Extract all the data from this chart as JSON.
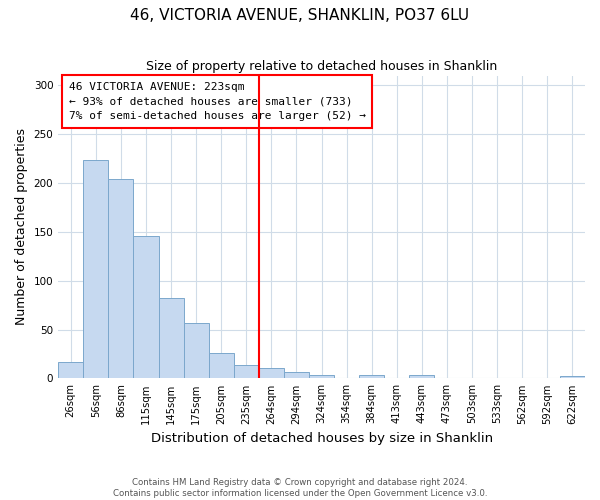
{
  "title": "46, VICTORIA AVENUE, SHANKLIN, PO37 6LU",
  "subtitle": "Size of property relative to detached houses in Shanklin",
  "xlabel": "Distribution of detached houses by size in Shanklin",
  "ylabel": "Number of detached properties",
  "bar_labels": [
    "26sqm",
    "56sqm",
    "86sqm",
    "115sqm",
    "145sqm",
    "175sqm",
    "205sqm",
    "235sqm",
    "264sqm",
    "294sqm",
    "324sqm",
    "354sqm",
    "384sqm",
    "413sqm",
    "443sqm",
    "473sqm",
    "503sqm",
    "533sqm",
    "562sqm",
    "592sqm",
    "622sqm"
  ],
  "bar_values": [
    17,
    224,
    204,
    146,
    82,
    57,
    26,
    14,
    11,
    7,
    4,
    0,
    4,
    0,
    4,
    0,
    0,
    0,
    0,
    0,
    2
  ],
  "bar_color": "#c6d9f0",
  "bar_edge_color": "#7ba7cc",
  "vline_x": 7.5,
  "vline_color": "red",
  "annotation_line1": "46 VICTORIA AVENUE: 223sqm",
  "annotation_line2": "← 93% of detached houses are smaller (733)",
  "annotation_line3": "7% of semi-detached houses are larger (52) →",
  "box_facecolor": "white",
  "box_edgecolor": "red",
  "ylim": [
    0,
    310
  ],
  "yticks": [
    0,
    50,
    100,
    150,
    200,
    250,
    300
  ],
  "footnote1": "Contains HM Land Registry data © Crown copyright and database right 2024.",
  "footnote2": "Contains public sector information licensed under the Open Government Licence v3.0.",
  "background_color": "#ffffff",
  "plot_bg_color": "#ffffff",
  "grid_color": "#d0dce8"
}
